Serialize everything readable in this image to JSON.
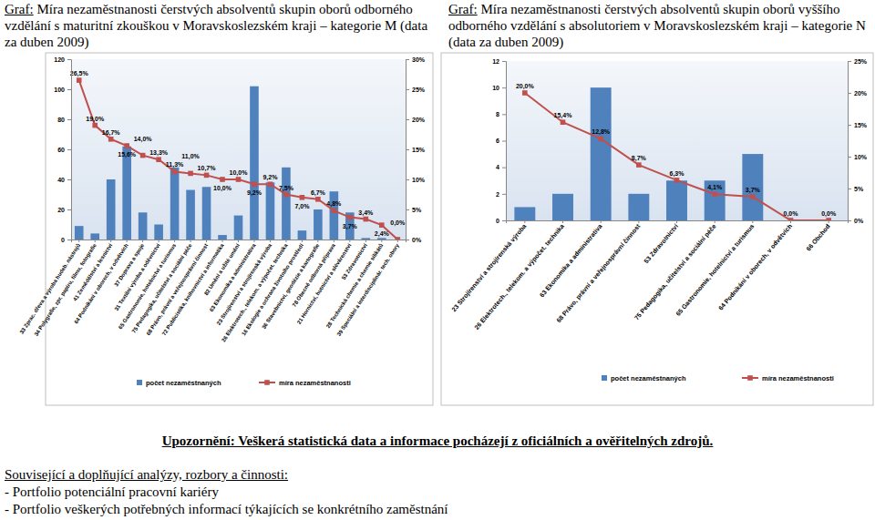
{
  "chart_data": [
    {
      "type": "bar",
      "title": "Graf: Míra nezaměstnanosti čerstvých absolventů skupin oborů odborného vzdělání s maturitní zkouškou v Moravskoslezském kraji – kategorie M (data za duben 2009)",
      "categories": [
        "33 Zprac. dřeva a výroba hudeb. nástrojů",
        "34 Polygrafie, zpr. papíru, filmu, fotografie",
        "41 Zemědělství a lesnictví",
        "64 Podnikání v oborech, v odvětvích",
        "37 Doprava a spoje",
        "31 Textilní výroba a oděvnictví",
        "65 Gastronomie, hotelnictví a turismus",
        "75 Pedagogika, učitelství a sociální péče",
        "68 Právo, právní a veřejnosprávní činnost",
        "72 Publicistika, knihovnictví a informatika",
        "82 Umění a užité umění",
        "63 Ekonomika a administrativa",
        "23 Strojírenství a strojírenská výroba",
        "26 Elektrotech., telekom. a výpočet. technika",
        "16 Ekologie a ochrana životního prostředí",
        "36 Stavebnictví, geodézie a kartografie",
        "78 Obecně odborná příprava",
        "21 Hornictví, hutnictví a slévárenství",
        "53 Zdravotnictví",
        "28 Technická chemie a chemie silikátů",
        "39 Speciální a interdisciplinár. tech. obory"
      ],
      "series": [
        {
          "name": "počet nezaměstnaných",
          "type": "bar",
          "color": "#4f81bd",
          "values": [
            9,
            4,
            40,
            62,
            18,
            10,
            48,
            33,
            35,
            3,
            16,
            102,
            38,
            48,
            6,
            20,
            32,
            18,
            1,
            1,
            0
          ]
        },
        {
          "name": "míra nezaměstnanosti",
          "type": "line",
          "axis": "y2",
          "color": "#c0504d",
          "marker": "square",
          "values": [
            26.5,
            19.0,
            16.7,
            15.6,
            14.0,
            13.3,
            11.3,
            11.0,
            10.7,
            10.0,
            10.0,
            9.2,
            9.2,
            7.5,
            7.0,
            6.7,
            4.8,
            3.7,
            3.4,
            2.4,
            0.0
          ],
          "value_labels": [
            "26,5%",
            "19,0%",
            "16,7%",
            "15,6%",
            "14,0%",
            "13,3%",
            "11,3%",
            "11,0%",
            "10,7%",
            "10,0%",
            "10,0%",
            "9,2%",
            "9,2%",
            "7,5%",
            "7,0%",
            "6,7%",
            "4,8%",
            "3,7%",
            "3,4%",
            "2,4%",
            "0,0%"
          ]
        }
      ],
      "ylim": [
        0,
        120
      ],
      "yticks": [
        0,
        20,
        40,
        60,
        80,
        100,
        120
      ],
      "y2lim": [
        0,
        30
      ],
      "y2ticks": [
        {
          "value": 0,
          "label": "0%"
        },
        {
          "value": 5,
          "label": "5%"
        },
        {
          "value": 10,
          "label": "10%"
        },
        {
          "value": 15,
          "label": "15%"
        },
        {
          "value": 20,
          "label": "20%"
        },
        {
          "value": 25,
          "label": "25%"
        },
        {
          "value": 30,
          "label": "30%"
        }
      ],
      "data_labels": true,
      "legend": "bottom",
      "grid": false
    },
    {
      "type": "bar",
      "title": "Graf: Míra nezaměstnanosti čerstvých absolventů skupin oborů vyššího odborného vzdělání s absolutoriem v Moravskoslezském kraji – kategorie N (data za duben 2009)",
      "categories": [
        "23 Strojírenství a strojírenská výroba",
        "26 Elektrotech., telekom. a výpočet. technika",
        "63 Ekonomika a administrativa",
        "68 Právo, právní a veřejnosprávní činnost",
        "53 Zdravotnictví",
        "75 Pedagogika, učitelství a sociální péče",
        "65 Gastronomie, hotelnictví a turismus",
        "64 Podnikání v oborech, v odvětvích",
        "66 Obchod"
      ],
      "series": [
        {
          "name": "počet nezaměstnaných",
          "type": "bar",
          "color": "#4f81bd",
          "values": [
            1,
            2,
            10,
            2,
            3,
            3,
            5,
            0,
            0
          ]
        },
        {
          "name": "míra nezaměstnanosti",
          "type": "line",
          "axis": "y2",
          "color": "#c0504d",
          "marker": "square",
          "values": [
            20.0,
            15.4,
            12.8,
            8.7,
            6.3,
            4.1,
            3.7,
            0.0,
            0.0
          ],
          "value_labels": [
            "20,0%",
            "15,4%",
            "12,8%",
            "8,7%",
            "6,3%",
            "4,1%",
            "3,7%",
            "0,0%",
            "0,0%"
          ]
        }
      ],
      "ylim": [
        0,
        12
      ],
      "yticks": [
        0,
        2,
        4,
        6,
        8,
        10,
        12
      ],
      "y2lim": [
        0,
        25
      ],
      "y2ticks": [
        {
          "value": 0,
          "label": "0%"
        },
        {
          "value": 5,
          "label": "5%"
        },
        {
          "value": 10,
          "label": "10%"
        },
        {
          "value": 15,
          "label": "15%"
        },
        {
          "value": 20,
          "label": "20%"
        },
        {
          "value": 25,
          "label": "25%"
        }
      ],
      "data_labels": true,
      "legend": "bottom",
      "grid": false
    }
  ],
  "document": {
    "warning": "Upozornění: Veškerá statistická data a informace pocházejí z oficiálních a ověřitelných zdrojů.",
    "related_title": "Související a doplňující analýzy, rozbory a činnosti:",
    "items": [
      "- Portfolio potenciální pracovní kariéry",
      "- Portfolio veškerých potřebných informací týkajících se konkrétního zaměstnání"
    ]
  }
}
